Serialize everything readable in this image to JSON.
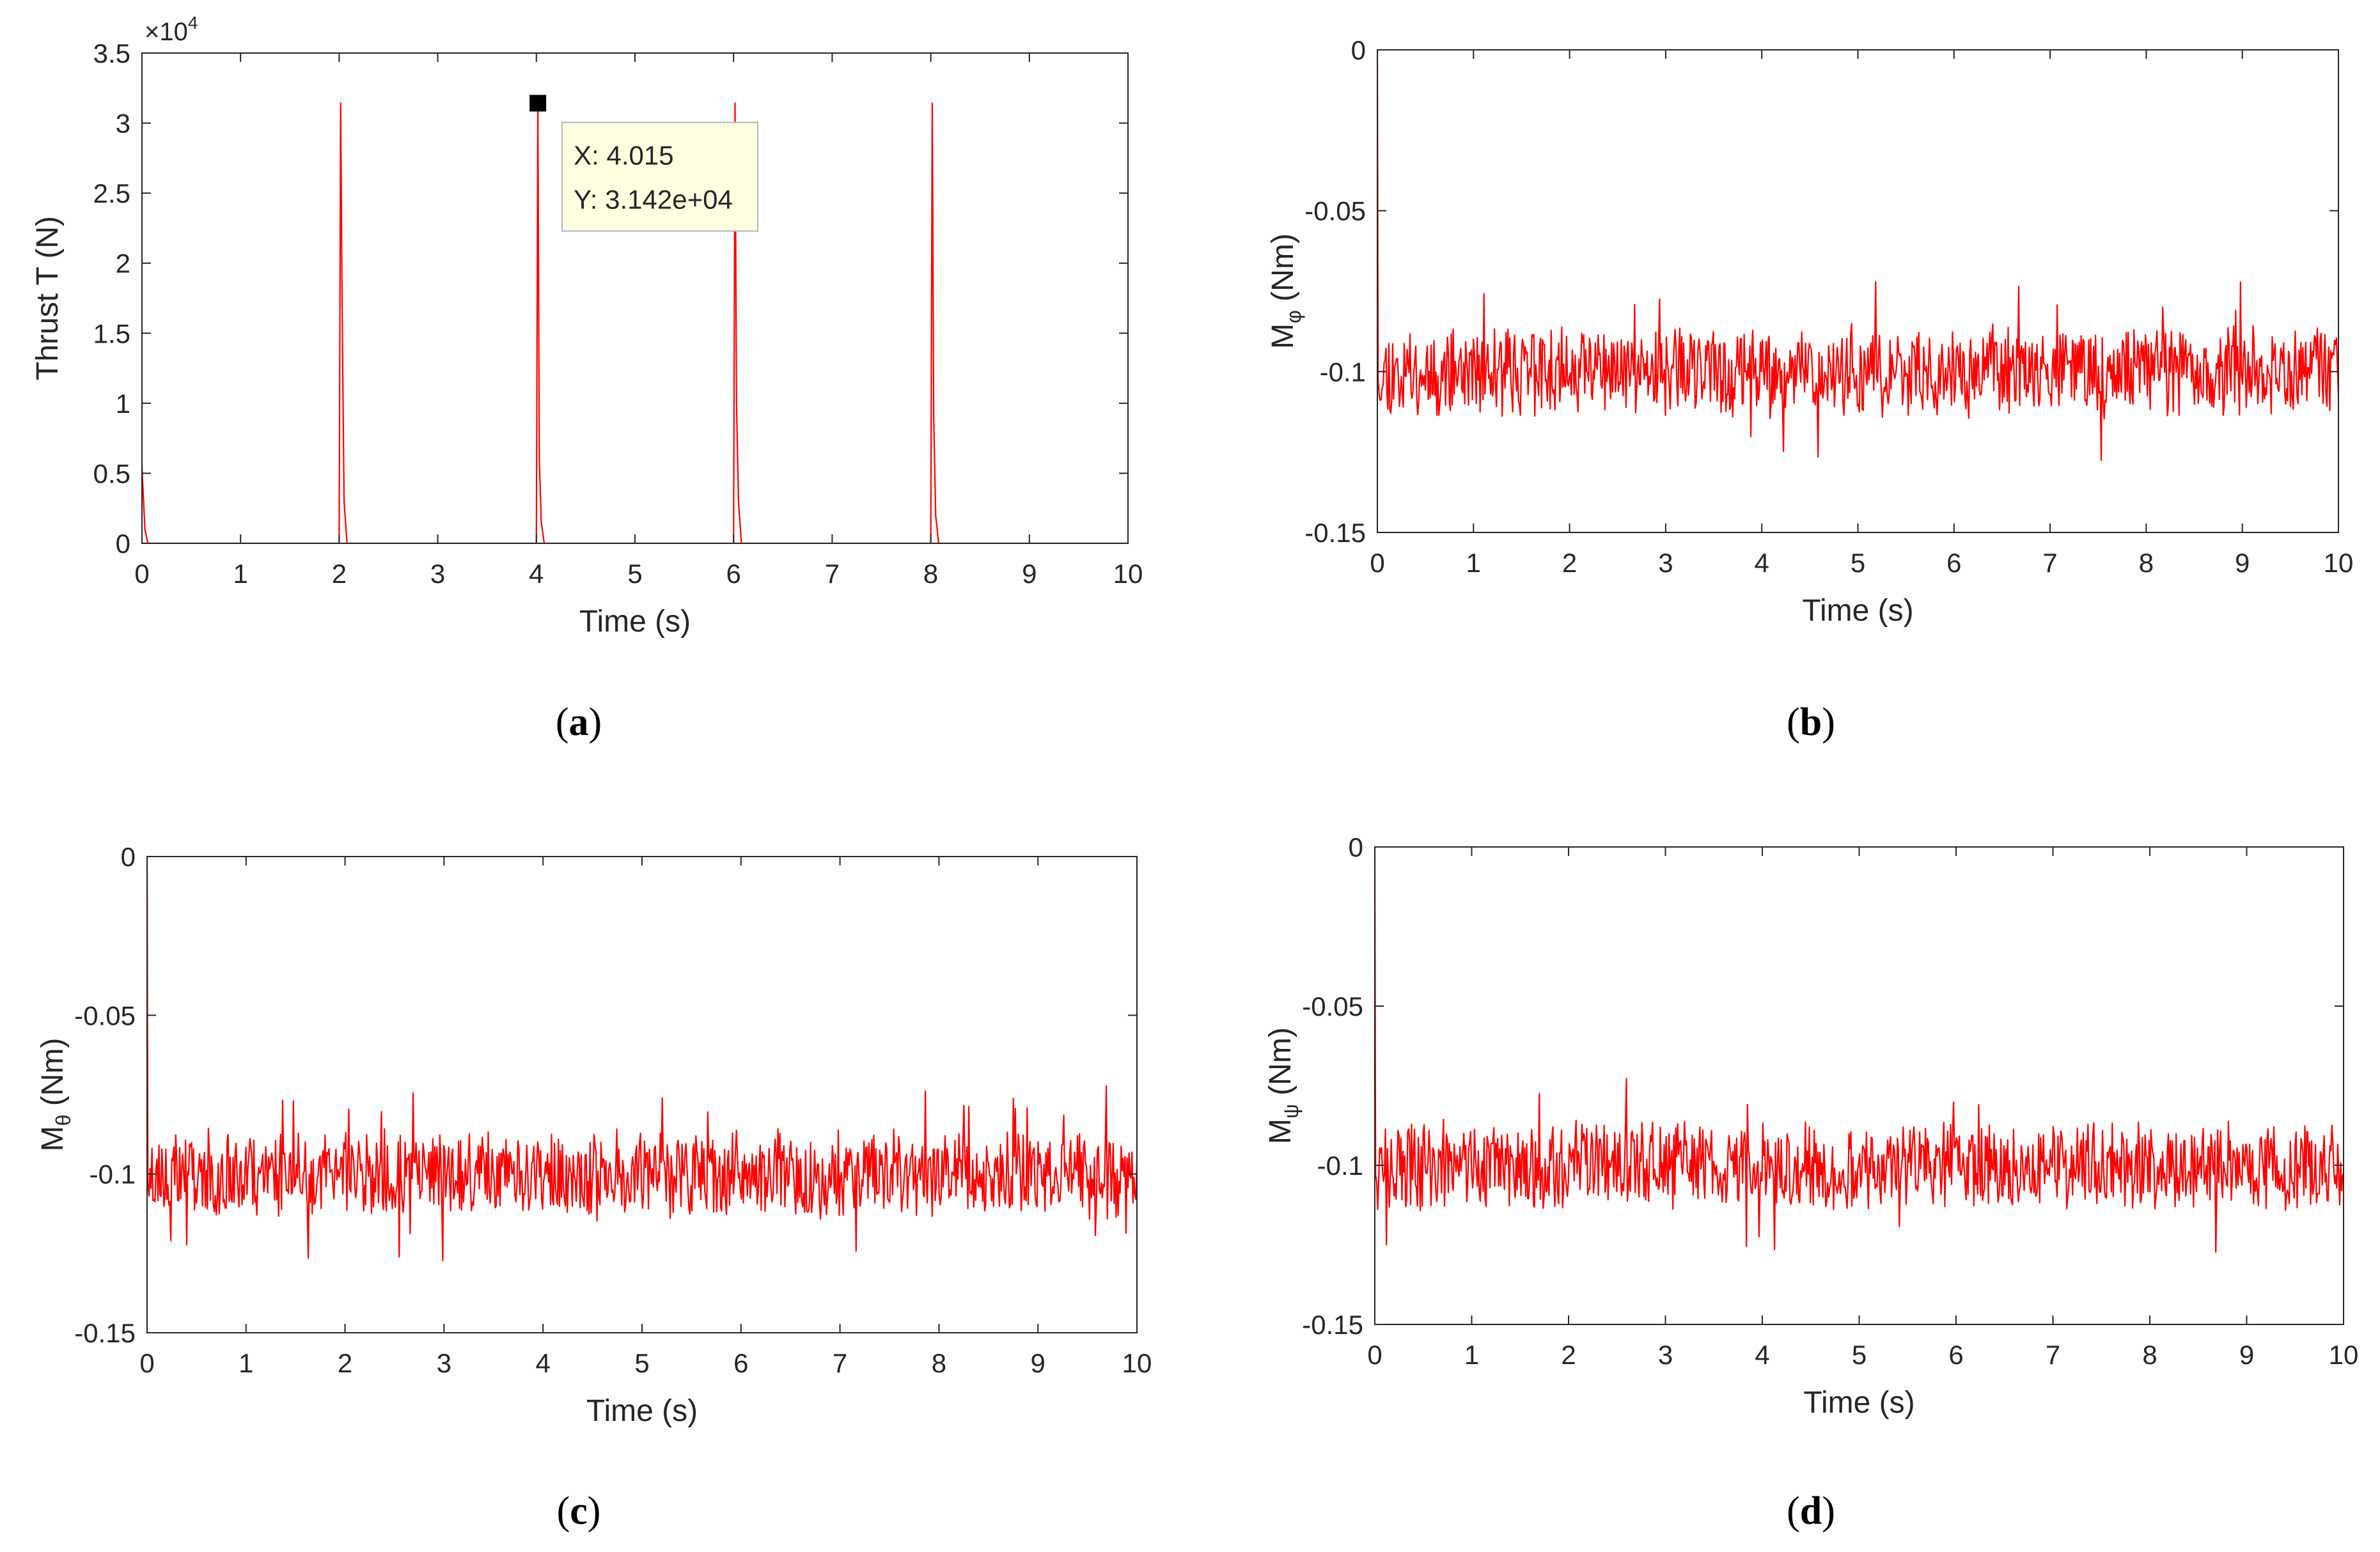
{
  "figure": {
    "line_color": "#ff0000",
    "axis_color": "#262626",
    "tooltip_bg": "#ffffe1"
  },
  "chart_data": [
    {
      "id": "a",
      "type": "line",
      "caption": "a",
      "xlabel": "Time (s)",
      "ylabel": "Thrust T (N)",
      "exponent_label": "×10",
      "exponent_power": "4",
      "xlim": [
        0,
        10
      ],
      "ylim": [
        0,
        3.5
      ],
      "xticks": [
        0,
        1,
        2,
        3,
        4,
        5,
        6,
        7,
        8,
        9,
        10
      ],
      "xtick_labels": [
        "0",
        "1",
        "2",
        "3",
        "4",
        "5",
        "6",
        "7",
        "8",
        "9",
        "10"
      ],
      "yticks": [
        0,
        0.5,
        1,
        1.5,
        2,
        2.5,
        3,
        3.5
      ],
      "ytick_labels": [
        "0",
        "0.5",
        "1",
        "1.5",
        "2",
        "2.5",
        "3",
        "3.5"
      ],
      "series": [
        {
          "name": "Thrust",
          "x": [
            0,
            0.01,
            0.03,
            0.06,
            2.0,
            2.015,
            2.03,
            2.05,
            2.08,
            4.0,
            4.015,
            4.03,
            4.05,
            4.08,
            6.0,
            6.015,
            6.03,
            6.05,
            6.08,
            8.0,
            8.015,
            8.03,
            8.05,
            8.08,
            10
          ],
          "y": [
            0.55,
            0.4,
            0.1,
            0,
            0,
            3.142,
            1.7,
            0.3,
            0,
            0,
            3.142,
            0.6,
            0.15,
            0,
            0,
            3.142,
            1.0,
            0.3,
            0,
            0,
            3.142,
            0.9,
            0.2,
            0,
            0
          ]
        }
      ],
      "datatip": {
        "x": 4.015,
        "y": 3.142,
        "x_label": "X: 4.015",
        "y_label": "Y: 3.142e+04"
      }
    },
    {
      "id": "b",
      "type": "line",
      "caption": "b",
      "xlabel": "Time (s)",
      "ylabel": "M",
      "ylabel_subscript": "φ",
      "ylabel_unit": " (Nm)",
      "xlim": [
        0,
        10
      ],
      "ylim": [
        -0.15,
        0
      ],
      "xticks": [
        0,
        1,
        2,
        3,
        4,
        5,
        6,
        7,
        8,
        9,
        10
      ],
      "xtick_labels": [
        "0",
        "1",
        "2",
        "3",
        "4",
        "5",
        "6",
        "7",
        "8",
        "9",
        "10"
      ],
      "yticks": [
        -0.15,
        -0.1,
        -0.05,
        0
      ],
      "ytick_labels": [
        "-0.15",
        "-0.1",
        "-0.05",
        "0"
      ],
      "series": [
        {
          "name": "M_phi",
          "start_value": 0,
          "mean": -0.1,
          "noise_amplitude": 0.012,
          "peak_max": -0.071,
          "peak_min": -0.131,
          "sample_count": 1000,
          "seed": 11
        }
      ]
    },
    {
      "id": "c",
      "type": "line",
      "caption": "c",
      "xlabel": "Time (s)",
      "ylabel": "M",
      "ylabel_subscript": "θ",
      "ylabel_unit": " (Nm)",
      "xlim": [
        0,
        10
      ],
      "ylim": [
        -0.15,
        0
      ],
      "xticks": [
        0,
        1,
        2,
        3,
        4,
        5,
        6,
        7,
        8,
        9,
        10
      ],
      "xtick_labels": [
        "0",
        "1",
        "2",
        "3",
        "4",
        "5",
        "6",
        "7",
        "8",
        "9",
        "10"
      ],
      "yticks": [
        -0.15,
        -0.1,
        -0.05,
        0
      ],
      "ytick_labels": [
        "-0.15",
        "-0.1",
        "-0.05",
        "0"
      ],
      "series": [
        {
          "name": "M_theta",
          "start_value": 0,
          "mean": -0.1,
          "noise_amplitude": 0.012,
          "peak_max": -0.071,
          "peak_min": -0.131,
          "sample_count": 1000,
          "seed": 23
        }
      ]
    },
    {
      "id": "d",
      "type": "line",
      "caption": "d",
      "xlabel": "Time (s)",
      "ylabel": "M",
      "ylabel_subscript": "ψ",
      "ylabel_unit": " (Nm)",
      "xlim": [
        0,
        10
      ],
      "ylim": [
        -0.15,
        0
      ],
      "xticks": [
        0,
        1,
        2,
        3,
        4,
        5,
        6,
        7,
        8,
        9,
        10
      ],
      "xtick_labels": [
        "0",
        "1",
        "2",
        "3",
        "4",
        "5",
        "6",
        "7",
        "8",
        "9",
        "10"
      ],
      "yticks": [
        -0.15,
        -0.1,
        -0.05,
        0
      ],
      "ytick_labels": [
        "-0.15",
        "-0.1",
        "-0.05",
        "0"
      ],
      "series": [
        {
          "name": "M_psi",
          "start_value": 0,
          "mean": -0.1,
          "noise_amplitude": 0.012,
          "peak_max": -0.071,
          "peak_min": -0.131,
          "sample_count": 1000,
          "seed": 37
        }
      ]
    }
  ]
}
